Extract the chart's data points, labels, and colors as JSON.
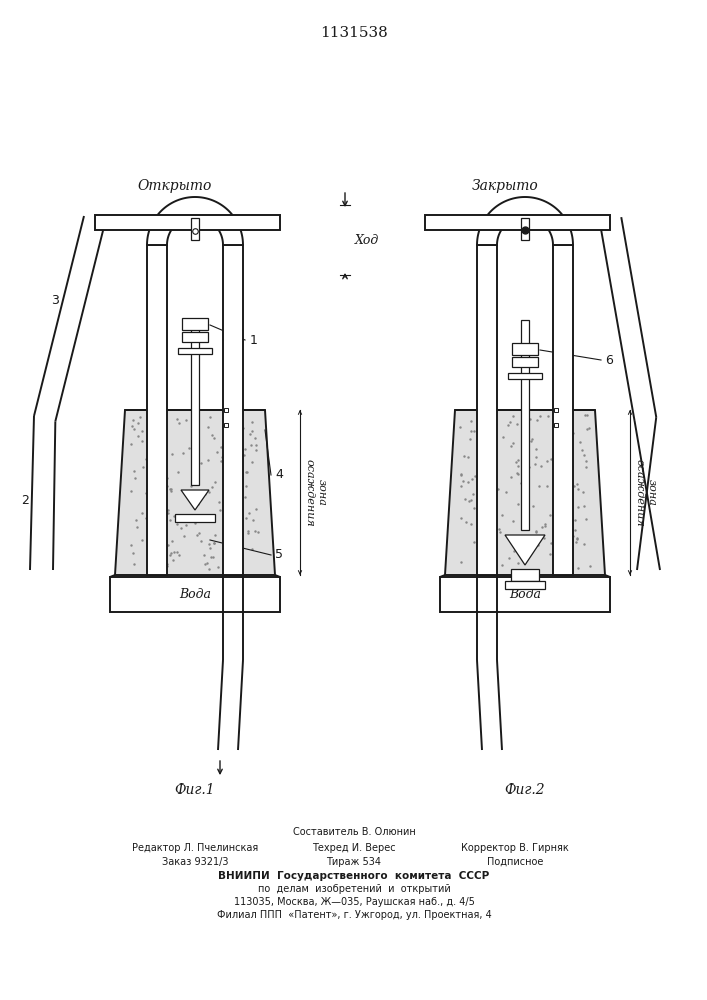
{
  "title": "1131538",
  "fig1_label": "Открыто",
  "fig2_label": "Закрыто",
  "fig1_caption": "Фиг.1",
  "fig2_caption": "Фиг.2",
  "label1": "1",
  "label2": "2",
  "label3": "3",
  "label4": "4",
  "label5": "5",
  "label6": "6",
  "label_khod": "Ход",
  "label_zona": "зона\nосаждения",
  "label_voda": "Вода",
  "bg_color": "#ffffff",
  "line_color": "#1a1a1a",
  "sand_color": "#e0e0e0",
  "lw": 1.4,
  "lw_thin": 0.9,
  "bottom_text_1": "Составитель В. Олюнин",
  "bottom_text_2a": "Редактор Л. Пчелинская",
  "bottom_text_2b": "Техред И. Верес",
  "bottom_text_2c": "Корректор В. Гирняк",
  "bottom_text_3a": "Заказ 9321/3",
  "bottom_text_3b": "Тираж 534",
  "bottom_text_3c": "Подписное",
  "bottom_text_4": "ВНИИПИ  Государственного  комитета  СССР",
  "bottom_text_5": "по  делам  изобретений  и  открытий",
  "bottom_text_6": "113035, Москва, Ж—035, Раушская наб., д. 4/5",
  "bottom_text_7": "Филиал ППП  «Патент», г. Ужгород, ул. Проектная, 4"
}
